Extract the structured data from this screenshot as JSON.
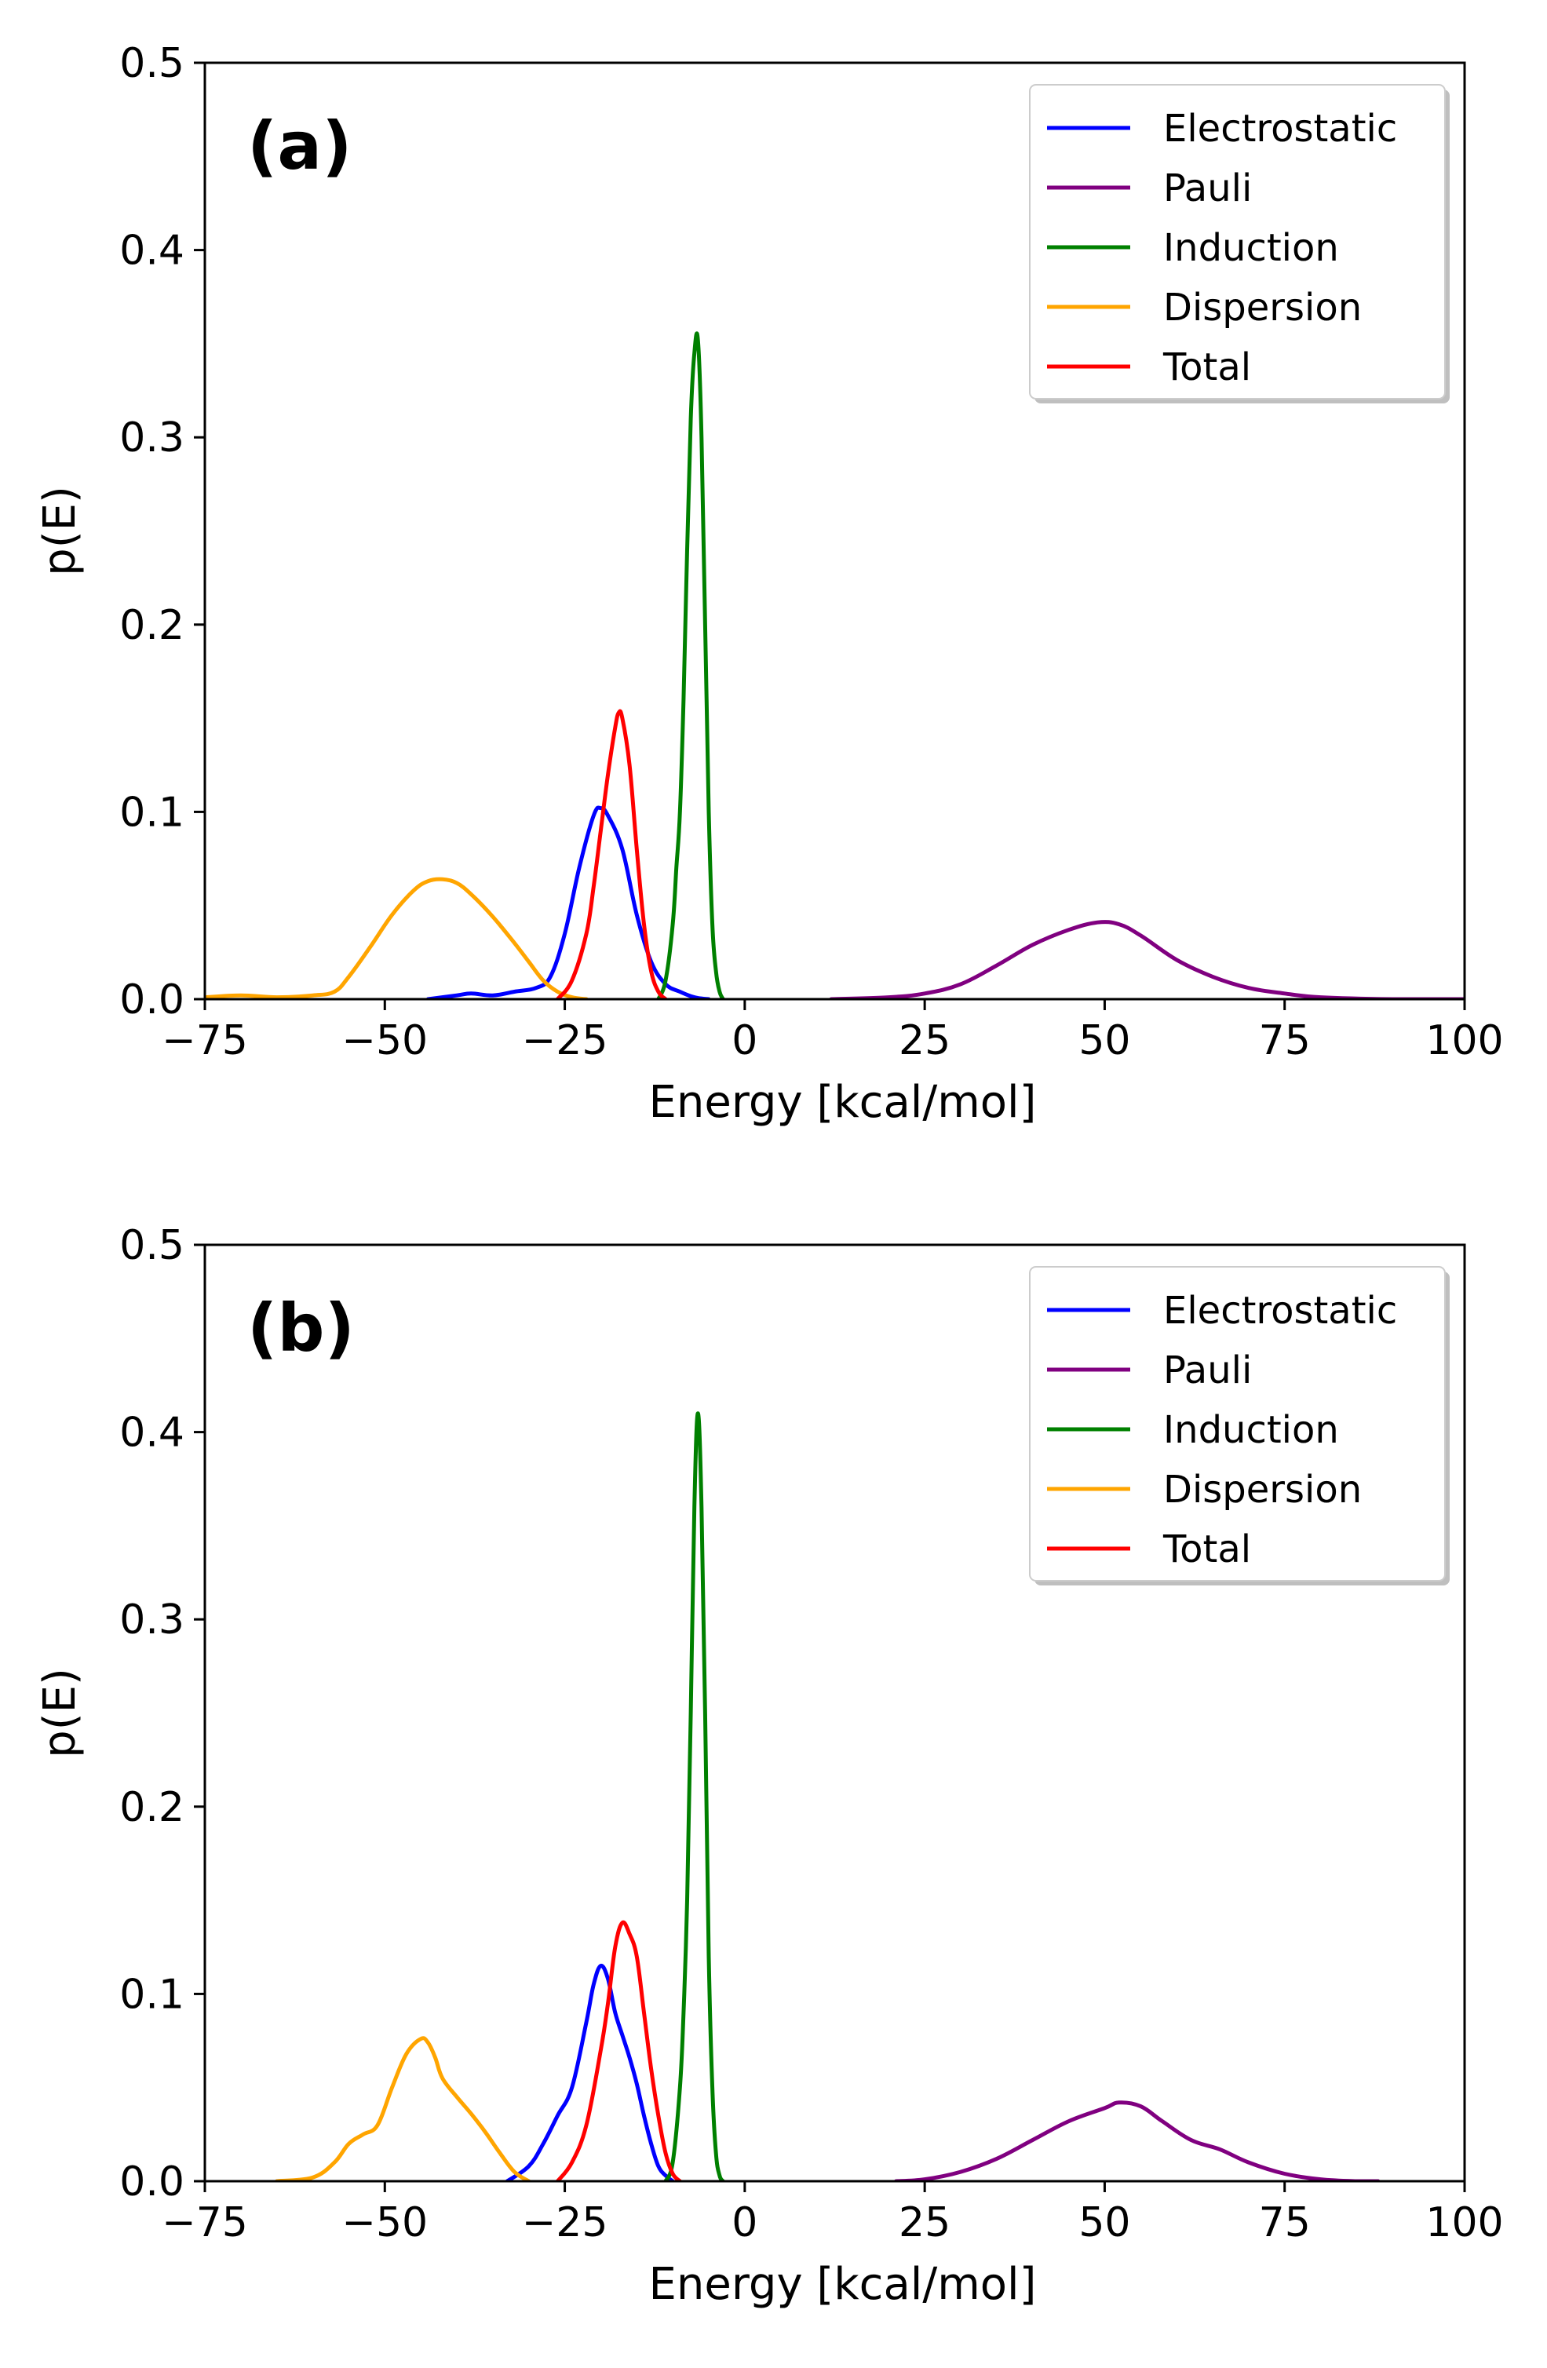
{
  "figure": {
    "background": "#ffffff"
  },
  "chart_data": [
    {
      "type": "line",
      "panel_label": "(a)",
      "xlabel": "Energy [kcal/mol]",
      "ylabel": "p(E)",
      "xlim": [
        -75,
        100
      ],
      "ylim": [
        0,
        0.5
      ],
      "xticks": [
        -75,
        -50,
        -25,
        0,
        25,
        50,
        75,
        100
      ],
      "xtick_labels": [
        "−75",
        "−50",
        "−25",
        "0",
        "25",
        "50",
        "75",
        "100"
      ],
      "yticks": [
        0.0,
        0.1,
        0.2,
        0.3,
        0.4,
        0.5
      ],
      "ytick_labels": [
        "0.0",
        "0.1",
        "0.2",
        "0.3",
        "0.4",
        "0.5"
      ],
      "grid": false,
      "legend_position": "top-right",
      "series": [
        {
          "name": "Electrostatic",
          "color": "#0000ff",
          "x": [
            -44,
            -40,
            -38,
            -35,
            -32,
            -29,
            -27,
            -25,
            -23,
            -21,
            -20,
            -19,
            -17,
            -15,
            -13,
            -11,
            -9,
            -7,
            -5
          ],
          "y": [
            0.0,
            0.002,
            0.003,
            0.002,
            0.004,
            0.006,
            0.012,
            0.035,
            0.07,
            0.098,
            0.102,
            0.098,
            0.08,
            0.045,
            0.02,
            0.008,
            0.004,
            0.001,
            0.0
          ]
        },
        {
          "name": "Pauli",
          "color": "#800080",
          "x": [
            12,
            20,
            25,
            30,
            35,
            40,
            45,
            49,
            52,
            55,
            60,
            65,
            70,
            75,
            80,
            90,
            100
          ],
          "y": [
            0.0,
            0.001,
            0.003,
            0.008,
            0.018,
            0.029,
            0.037,
            0.041,
            0.04,
            0.034,
            0.021,
            0.012,
            0.006,
            0.003,
            0.001,
            0.0,
            0.0
          ]
        },
        {
          "name": "Induction",
          "color": "#008000",
          "x": [
            -12,
            -11,
            -10,
            -9.5,
            -9,
            -8.5,
            -8,
            -7.5,
            -7,
            -6.5,
            -6,
            -5.5,
            -5,
            -4.5,
            -4,
            -3.5,
            -3
          ],
          "y": [
            0.0,
            0.01,
            0.04,
            0.07,
            0.1,
            0.16,
            0.24,
            0.31,
            0.345,
            0.352,
            0.3,
            0.2,
            0.1,
            0.04,
            0.015,
            0.004,
            0.0
          ]
        },
        {
          "name": "Dispersion",
          "color": "#ffa500",
          "x": [
            -75,
            -70,
            -65,
            -60,
            -57,
            -55,
            -52,
            -49,
            -46,
            -44,
            -42,
            -40,
            -38,
            -35,
            -32,
            -30,
            -28,
            -26,
            -24,
            -22
          ],
          "y": [
            0.001,
            0.002,
            0.001,
            0.002,
            0.004,
            0.012,
            0.028,
            0.045,
            0.058,
            0.063,
            0.064,
            0.062,
            0.056,
            0.044,
            0.03,
            0.02,
            0.01,
            0.004,
            0.001,
            0.0
          ]
        },
        {
          "name": "Total",
          "color": "#ff0000",
          "x": [
            -26,
            -24,
            -22,
            -21,
            -20,
            -19,
            -18,
            -17.5,
            -17,
            -16,
            -15,
            -14,
            -13,
            -12,
            -11
          ],
          "y": [
            0.0,
            0.01,
            0.035,
            0.06,
            0.09,
            0.12,
            0.145,
            0.153,
            0.15,
            0.125,
            0.08,
            0.04,
            0.015,
            0.004,
            0.0
          ]
        }
      ]
    },
    {
      "type": "line",
      "panel_label": "(b)",
      "xlabel": "Energy [kcal/mol]",
      "ylabel": "p(E)",
      "xlim": [
        -75,
        100
      ],
      "ylim": [
        0,
        0.5
      ],
      "xticks": [
        -75,
        -50,
        -25,
        0,
        25,
        50,
        75,
        100
      ],
      "xtick_labels": [
        "−75",
        "−50",
        "−25",
        "0",
        "25",
        "50",
        "75",
        "100"
      ],
      "yticks": [
        0.0,
        0.1,
        0.2,
        0.3,
        0.4,
        0.5
      ],
      "ytick_labels": [
        "0.0",
        "0.1",
        "0.2",
        "0.3",
        "0.4",
        "0.5"
      ],
      "grid": false,
      "legend_position": "top-right",
      "series": [
        {
          "name": "Electrostatic",
          "color": "#0000ff",
          "x": [
            -33,
            -30,
            -28,
            -26,
            -24,
            -22,
            -21,
            -20,
            -19,
            -18,
            -17,
            -16,
            -15,
            -14,
            -13,
            -12,
            -11,
            -10
          ],
          "y": [
            0.0,
            0.008,
            0.02,
            0.035,
            0.05,
            0.085,
            0.105,
            0.115,
            0.108,
            0.09,
            0.078,
            0.066,
            0.052,
            0.035,
            0.02,
            0.008,
            0.003,
            0.0
          ]
        },
        {
          "name": "Pauli",
          "color": "#800080",
          "x": [
            21,
            25,
            30,
            35,
            40,
            45,
            50,
            52,
            55,
            58,
            62,
            66,
            70,
            75,
            80,
            85,
            88
          ],
          "y": [
            0.0,
            0.001,
            0.005,
            0.012,
            0.022,
            0.032,
            0.039,
            0.042,
            0.04,
            0.032,
            0.022,
            0.017,
            0.01,
            0.004,
            0.001,
            0.0,
            0.0
          ]
        },
        {
          "name": "Induction",
          "color": "#008000",
          "x": [
            -11,
            -10,
            -9,
            -8.5,
            -8,
            -7.5,
            -7,
            -6.5,
            -6,
            -5.5,
            -5,
            -4.5,
            -4,
            -3.5,
            -3
          ],
          "y": [
            0.0,
            0.01,
            0.05,
            0.09,
            0.15,
            0.25,
            0.36,
            0.41,
            0.36,
            0.25,
            0.12,
            0.05,
            0.015,
            0.003,
            0.0
          ]
        },
        {
          "name": "Dispersion",
          "color": "#ffa500",
          "x": [
            -65,
            -60,
            -57,
            -55,
            -53,
            -51,
            -49,
            -47,
            -45,
            -44,
            -43,
            -42,
            -40,
            -38,
            -36,
            -34,
            -32,
            -30
          ],
          "y": [
            0.0,
            0.002,
            0.01,
            0.02,
            0.025,
            0.03,
            0.05,
            0.068,
            0.076,
            0.074,
            0.066,
            0.055,
            0.045,
            0.036,
            0.026,
            0.015,
            0.005,
            0.0
          ]
        },
        {
          "name": "Total",
          "color": "#ff0000",
          "x": [
            -26,
            -24,
            -22,
            -20,
            -19,
            -18,
            -17,
            -16,
            -15,
            -14,
            -13,
            -12,
            -11,
            -10,
            -9
          ],
          "y": [
            0.0,
            0.01,
            0.03,
            0.07,
            0.095,
            0.125,
            0.138,
            0.132,
            0.12,
            0.09,
            0.06,
            0.035,
            0.015,
            0.004,
            0.0
          ]
        }
      ]
    }
  ]
}
